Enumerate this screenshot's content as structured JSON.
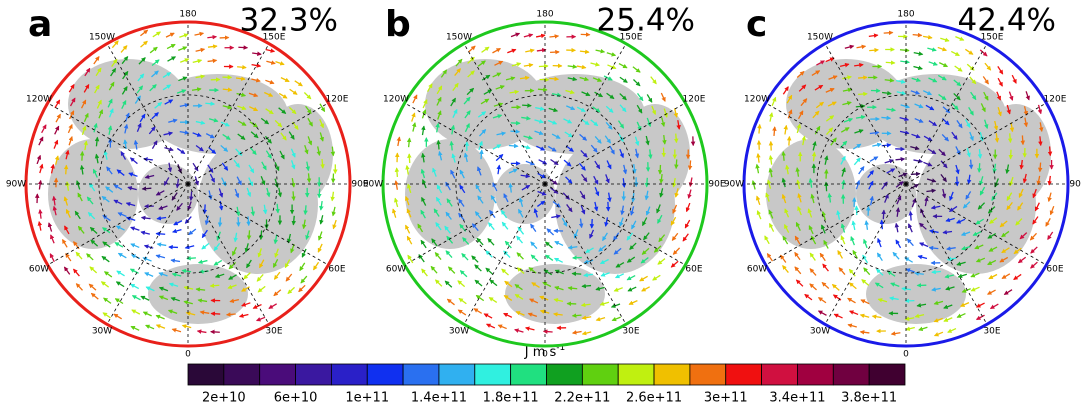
{
  "panels": [
    {
      "letter": "a",
      "percent": "32.3%",
      "border_color": "#e8201a"
    },
    {
      "letter": "b",
      "percent": "25.4%",
      "border_color": "#1ec81e"
    },
    {
      "letter": "c",
      "percent": "42.4%",
      "border_color": "#1a1ae8"
    }
  ],
  "longitude_labels": [
    {
      "lon": 180,
      "label": "180"
    },
    {
      "lon": 150,
      "label": "150E"
    },
    {
      "lon": 120,
      "label": "120E"
    },
    {
      "lon": 90,
      "label": "90E"
    },
    {
      "lon": 60,
      "label": "60E"
    },
    {
      "lon": 30,
      "label": "30E"
    },
    {
      "lon": 0,
      "label": "0"
    },
    {
      "lon": -30,
      "label": "30W"
    },
    {
      "lon": -60,
      "label": "60W"
    },
    {
      "lon": -90,
      "label": "90W"
    },
    {
      "lon": -120,
      "label": "120W"
    },
    {
      "lon": -150,
      "label": "150W"
    }
  ],
  "unit": {
    "base": "J m s",
    "exponent": "-1"
  },
  "colorbar": {
    "colors": [
      "#2a0838",
      "#3a0a58",
      "#4a0c7a",
      "#3a18a0",
      "#2a20c8",
      "#1030f0",
      "#2a70f0",
      "#30b0f0",
      "#30f0e0",
      "#20e080",
      "#10a020",
      "#60d010",
      "#c0f010",
      "#f0c000",
      "#f07010",
      "#f01010",
      "#d01040",
      "#a00040",
      "#700040",
      "#400030"
    ],
    "labels": [
      "2e+10",
      "6e+10",
      "1e+11",
      "1.4e+11",
      "1.8e+11",
      "2.2e+11",
      "2.6e+11",
      "3e+11",
      "3.4e+11",
      "3.8e+11"
    ]
  }
}
